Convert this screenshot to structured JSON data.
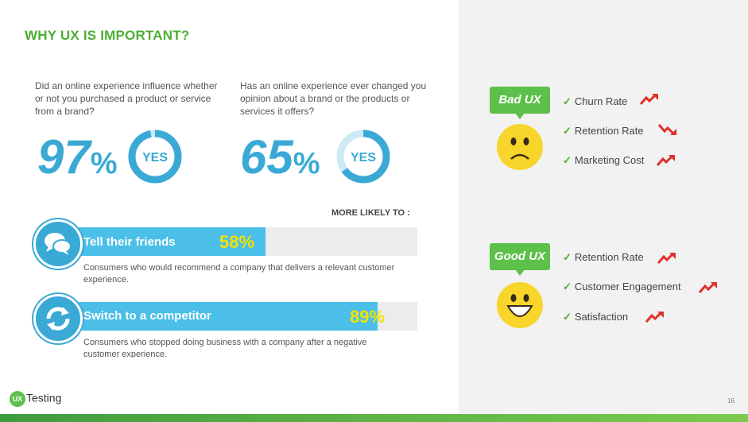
{
  "title": "WHY UX IS IMPORTANT?",
  "questions": [
    {
      "text": "Did an online experience influence whether or not you purchased a product or service from a brand?",
      "value": "97",
      "unit": "%",
      "answer": "YES",
      "fraction": 0.97
    },
    {
      "text": "Has an online experience ever changed you opinion about a brand or the products or services it offers?",
      "value": "65",
      "unit": "%",
      "answer": "YES",
      "fraction": 0.65
    }
  ],
  "more_likely": "MORE LIKELY TO :",
  "bars": [
    {
      "label": "Tell their friends",
      "percent": "58%",
      "fraction": 0.58,
      "description": "Consumers who would recommend a company that delivers a relevant customer experience.",
      "icon": "chat-bubbles-icon"
    },
    {
      "label": "Switch to a competitor",
      "percent": "89%",
      "fraction": 0.89,
      "description": "Consumers who stopped doing business with a company after a negative customer experience.",
      "icon": "refresh-arrows-icon"
    }
  ],
  "bad_ux": {
    "label": "Bad UX",
    "items": [
      {
        "text": "Churn Rate",
        "trend": "up"
      },
      {
        "text": "Retention Rate",
        "trend": "down"
      },
      {
        "text": "Marketing Cost",
        "trend": "up"
      }
    ]
  },
  "good_ux": {
    "label": "Good UX",
    "items": [
      {
        "text": "Retention Rate",
        "trend": "up"
      },
      {
        "text": "Customer Engagement",
        "trend": "up"
      },
      {
        "text": "Satisfaction",
        "trend": "up"
      }
    ]
  },
  "checkmark": "✓",
  "logo": {
    "badge": "UX",
    "text": "Testing"
  },
  "page_number": "16",
  "colors": {
    "green": "#4cae32",
    "blue": "#3aa9d6",
    "yellow": "#f5e100",
    "red": "#e0302b"
  }
}
